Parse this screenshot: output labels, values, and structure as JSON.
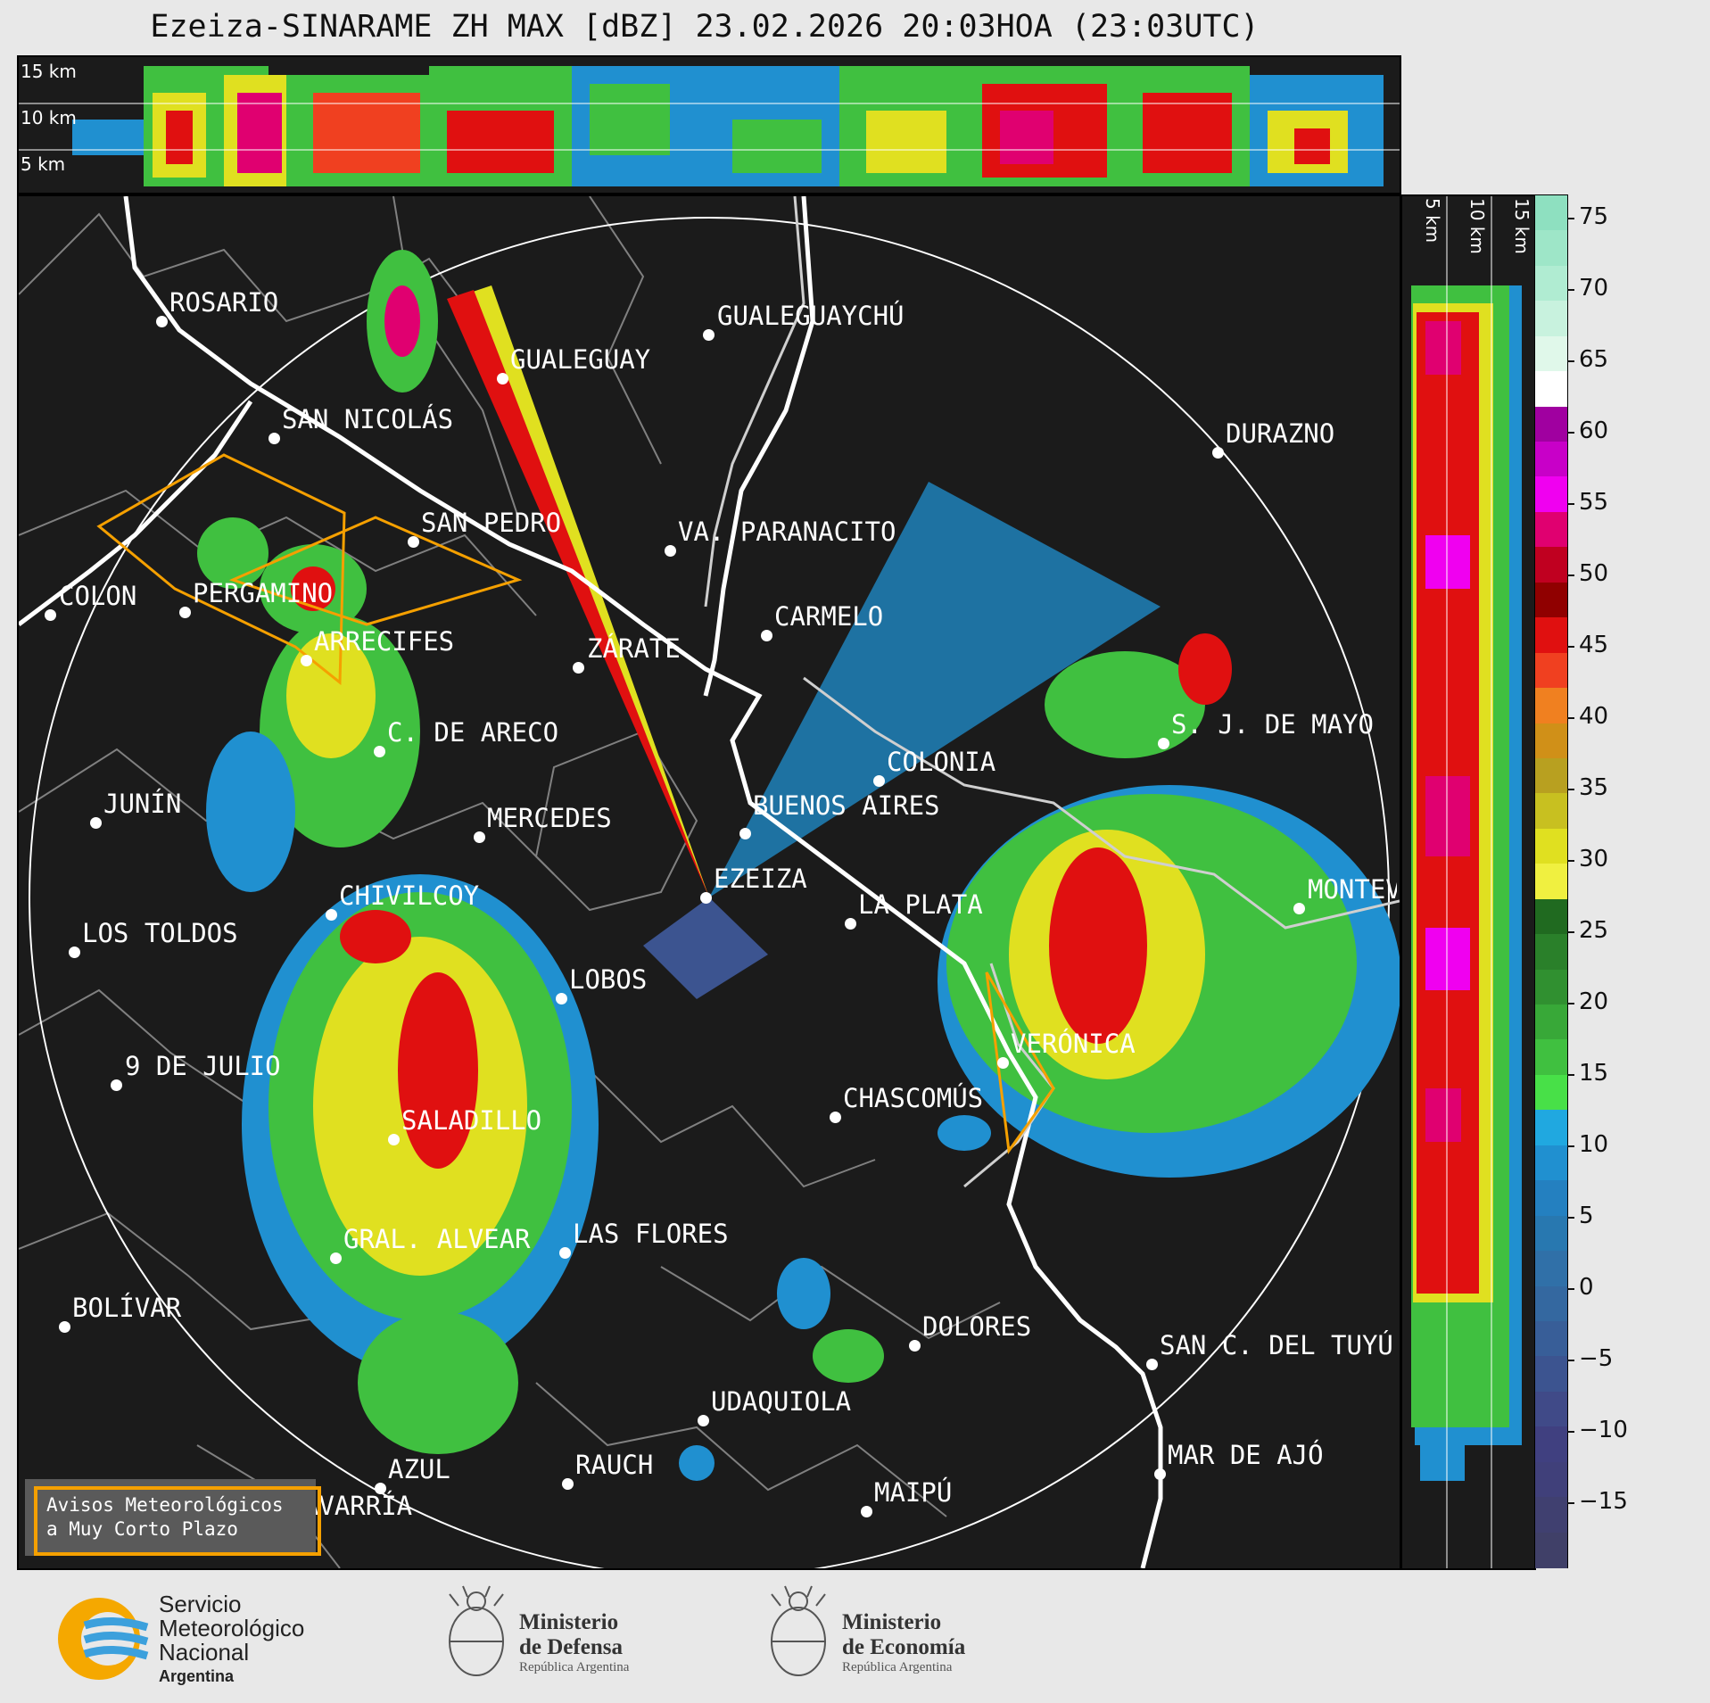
{
  "title": "Ezeiza-SINARAME ZH MAX [dBZ] 23.02.2026 20:03HOA (23:03UTC)",
  "top_panel_altitudes": [
    "15 km",
    "10 km",
    "5 km"
  ],
  "right_panel_altitudes": [
    "5 km",
    "10 km",
    "15 km"
  ],
  "colorbar": {
    "ticks": [
      "75",
      "70",
      "65",
      "60",
      "55",
      "50",
      "45",
      "40",
      "35",
      "30",
      "25",
      "20",
      "15",
      "10",
      "5",
      "0",
      "−5",
      "−10",
      "−15"
    ],
    "colors": [
      "#8ee0c0",
      "#9ee6c8",
      "#b0ecd2",
      "#c8f2de",
      "#e0f8ea",
      "#ffffff",
      "#a000a0",
      "#c800c8",
      "#f000f0",
      "#e00070",
      "#c00020",
      "#900000",
      "#e01010",
      "#f04020",
      "#f08020",
      "#d09018",
      "#b8a020",
      "#c8c020",
      "#e0e020",
      "#f0f040",
      "#206a20",
      "#2a802a",
      "#309030",
      "#38a838",
      "#40c040",
      "#48e048",
      "#20a8e0",
      "#2090d0",
      "#2480c0",
      "#2878b0",
      "#3070a8",
      "#3468a0",
      "#385e98",
      "#3c5490",
      "#404a88",
      "#404080",
      "#40407a",
      "#404070",
      "#404068"
    ]
  },
  "cities": [
    {
      "name": "ROSARIO"
    },
    {
      "name": "GUALEGUAYCHÚ"
    },
    {
      "name": "GUALEGUAY"
    },
    {
      "name": "SAN NICOLÁS"
    },
    {
      "name": "DURAZNO"
    },
    {
      "name": "SAN PEDRO"
    },
    {
      "name": "VA. PARANACITO"
    },
    {
      "name": "COLON"
    },
    {
      "name": "PERGAMINO"
    },
    {
      "name": "CARMELO"
    },
    {
      "name": "ARRECIFES"
    },
    {
      "name": "ZÁRATE"
    },
    {
      "name": "S. J. DE MAYO"
    },
    {
      "name": "C. DE ARECO"
    },
    {
      "name": "COLONIA"
    },
    {
      "name": "JUNÍN"
    },
    {
      "name": "BUENOS AIRES"
    },
    {
      "name": "MERCEDES"
    },
    {
      "name": "EZEIZA"
    },
    {
      "name": "MONTEVIDEO"
    },
    {
      "name": "CHIVILCOY"
    },
    {
      "name": "LA PLATA"
    },
    {
      "name": "LOS TOLDOS"
    },
    {
      "name": "LOBOS"
    },
    {
      "name": "VERÓNICA"
    },
    {
      "name": "9 DE JULIO"
    },
    {
      "name": "CHASCOMÚS"
    },
    {
      "name": "SALADILLO"
    },
    {
      "name": "GRAL. ALVEAR"
    },
    {
      "name": "LAS FLORES"
    },
    {
      "name": "BOLÍVAR"
    },
    {
      "name": "DOLORES"
    },
    {
      "name": "SAN C. DEL TUYÚ"
    },
    {
      "name": "UDAQUIOLA"
    },
    {
      "name": "AZUL"
    },
    {
      "name": "RAUCH"
    },
    {
      "name": "MAR DE AJÓ"
    },
    {
      "name": "OLAVARRÍA"
    },
    {
      "name": "MAIPÚ"
    }
  ],
  "legend": {
    "line1": "Avisos Meteorológicos",
    "line2": "a Muy Corto Plazo"
  },
  "logos": {
    "smn": {
      "line1": "Servicio",
      "line2": "Meteorológico",
      "line3": "Nacional",
      "line4": "Argentina"
    },
    "defensa": {
      "line1": "Ministerio",
      "line2": "de Defensa",
      "line3": "República Argentina"
    },
    "economia": {
      "line1": "Ministerio",
      "line2": "de Economía",
      "line3": "República Argentina"
    }
  }
}
